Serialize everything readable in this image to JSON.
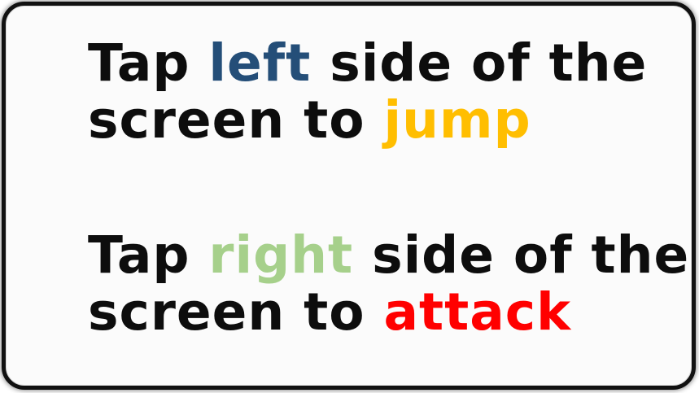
{
  "tutorial": {
    "jump_instruction": {
      "part1": "Tap ",
      "keyword_left": "left",
      "part2": " side of the",
      "part3": "screen to ",
      "keyword_jump": "jump"
    },
    "attack_instruction": {
      "part1": "Tap ",
      "keyword_right": "right",
      "part2": " side of the",
      "part3": "screen to ",
      "keyword_attack": "attack"
    },
    "colors": {
      "left": "#244e78",
      "jump": "#ffbe00",
      "right": "#a6d08b",
      "attack": "#ff0000",
      "text": "#0d0d0d",
      "border": "#111111"
    }
  }
}
